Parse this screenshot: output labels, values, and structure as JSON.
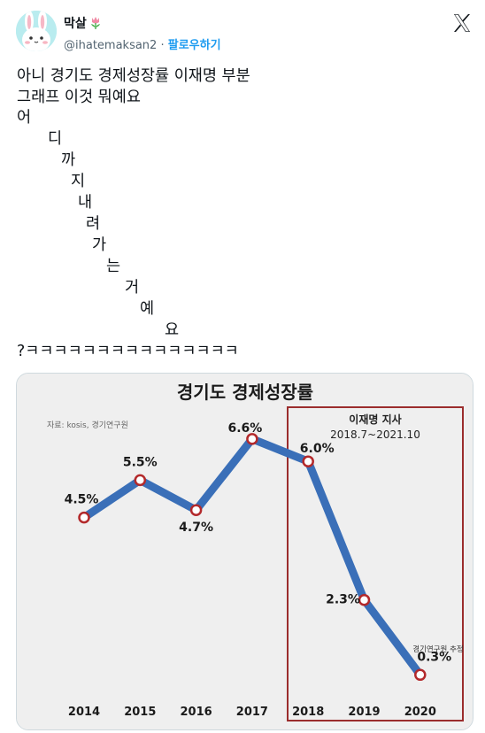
{
  "user": {
    "display_name": "막살",
    "handle": "@ihatemaksan2",
    "separator": "·",
    "follow_label": "팔로우하기"
  },
  "tweet": {
    "lines": [
      "아니 경기도 경제성장률 이재명 부분",
      "그래프 이것 뭐예요",
      "어",
      "디",
      "까",
      "지",
      "내",
      "려",
      "가",
      "는",
      "거",
      "예",
      "요",
      "?ㅋㅋㅋㅋㅋㅋㅋㅋㅋㅋㅋㅋㅋㅋㅋ"
    ]
  },
  "icons": {
    "avatar": "bunny-avatar",
    "name_emoji": "tulip-icon",
    "brand": "x-logo-icon"
  },
  "chart_data": {
    "type": "line",
    "title": "경기도 경제성장률",
    "source": "자료: kosis, 경기연구원",
    "categories": [
      "2014",
      "2015",
      "2016",
      "2017",
      "2018",
      "2019",
      "2020"
    ],
    "series": [
      {
        "values": [
          4.5,
          5.5,
          4.7,
          6.6,
          6.0,
          2.3,
          0.3
        ]
      }
    ],
    "data_labels": [
      "4.5%",
      "5.5%",
      "4.7%",
      "6.6%",
      "6.0%",
      "2.3%",
      "0.3%"
    ],
    "ylim": [
      0,
      7
    ],
    "grid": false,
    "highlight_box": {
      "label": "이재명 지사",
      "sublabel": "2018.7~2021.10",
      "from_category": "2018",
      "to_category": "2020"
    },
    "annotation": "경기연구원 추정",
    "line_color": "#3a6fb8",
    "marker_color": "#b3292b",
    "box_color": "#9b2d2d"
  }
}
